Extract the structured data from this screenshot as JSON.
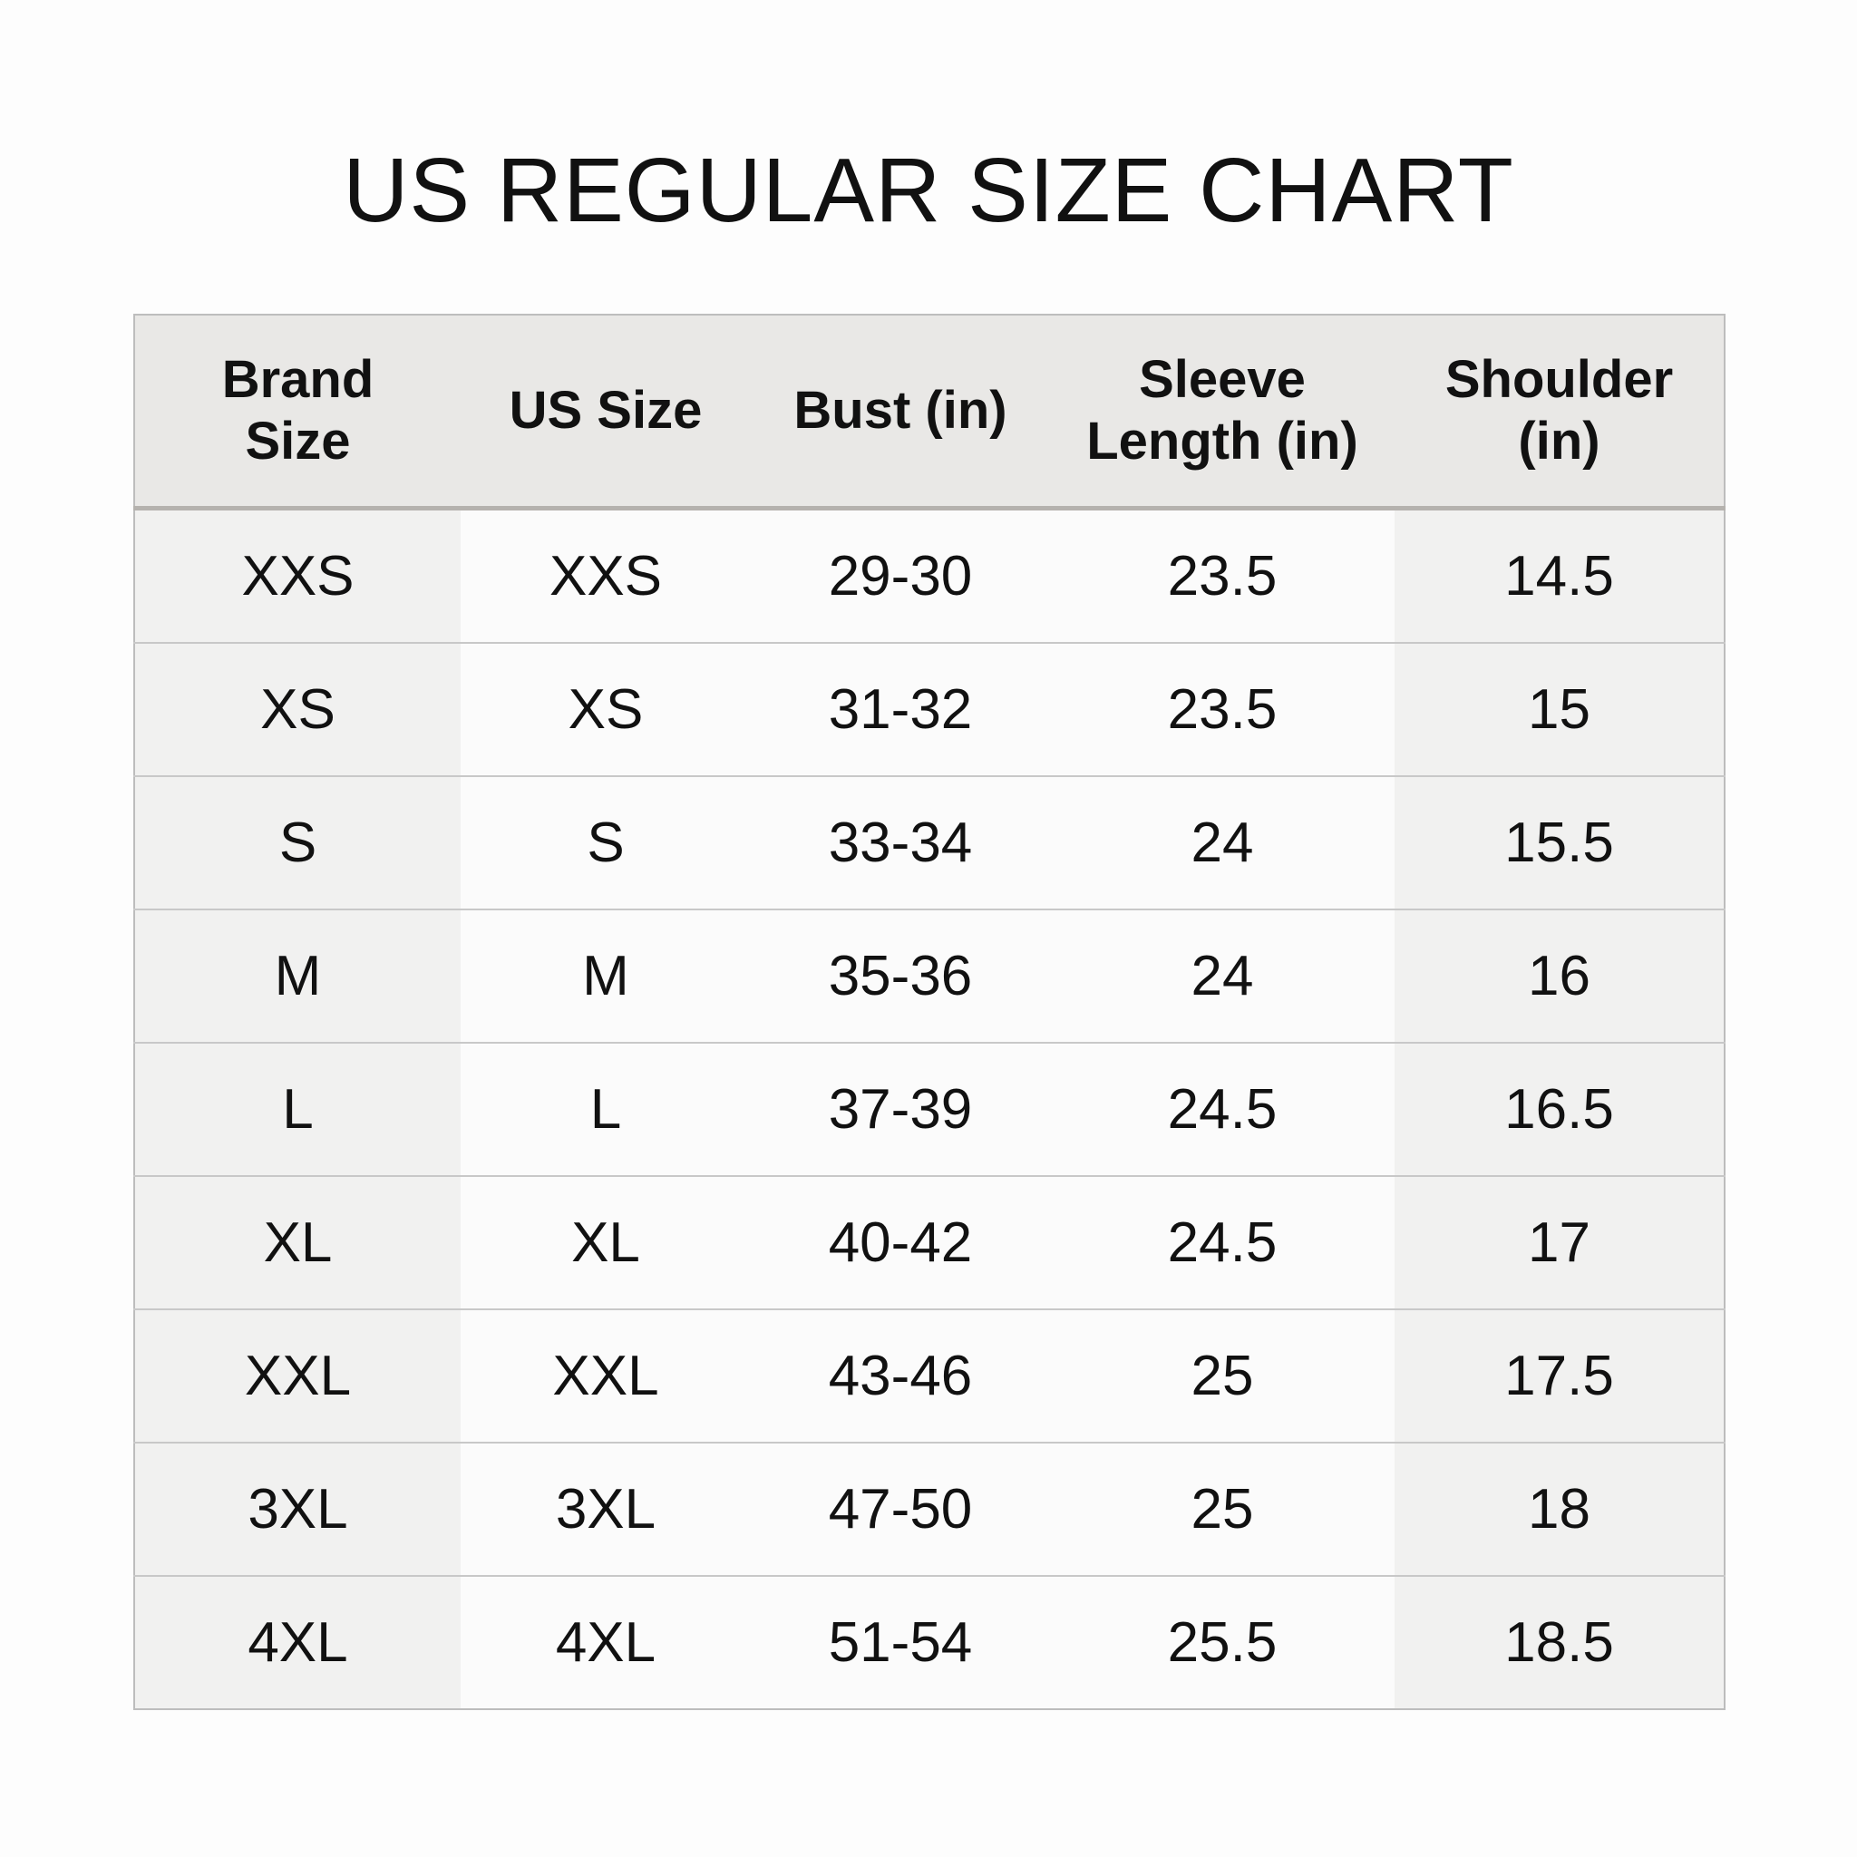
{
  "title": "US REGULAR SIZE CHART",
  "table": {
    "headers": [
      "Brand Size",
      "US Size",
      "Bust (in)",
      "Sleeve Length (in)",
      "Shoulder (in)"
    ],
    "header_lines": [
      [
        "Brand",
        "Size"
      ],
      [
        "US Size"
      ],
      [
        "Bust (in)"
      ],
      [
        "Sleeve",
        "Length (in)"
      ],
      [
        "Shoulder",
        "(in)"
      ]
    ],
    "rows": [
      [
        "XXS",
        "XXS",
        "29-30",
        "23.5",
        "14.5"
      ],
      [
        "XS",
        "XS",
        "31-32",
        "23.5",
        "15"
      ],
      [
        "S",
        "S",
        "33-34",
        "24",
        "15.5"
      ],
      [
        "M",
        "M",
        "35-36",
        "24",
        "16"
      ],
      [
        "L",
        "L",
        "37-39",
        "24.5",
        "16.5"
      ],
      [
        "XL",
        "XL",
        "40-42",
        "24.5",
        "17"
      ],
      [
        "XXL",
        "XXL",
        "43-46",
        "25",
        "17.5"
      ],
      [
        "3XL",
        "3XL",
        "47-50",
        "25",
        "18"
      ],
      [
        "4XL",
        "4XL",
        "51-54",
        "25.5",
        "18.5"
      ]
    ]
  },
  "colors": {
    "header_bg": "#e9e8e6",
    "shaded_column_bg": "#f1f1f0",
    "plain_column_bg": "#fbfbfb",
    "border": "#bdbdbd"
  }
}
